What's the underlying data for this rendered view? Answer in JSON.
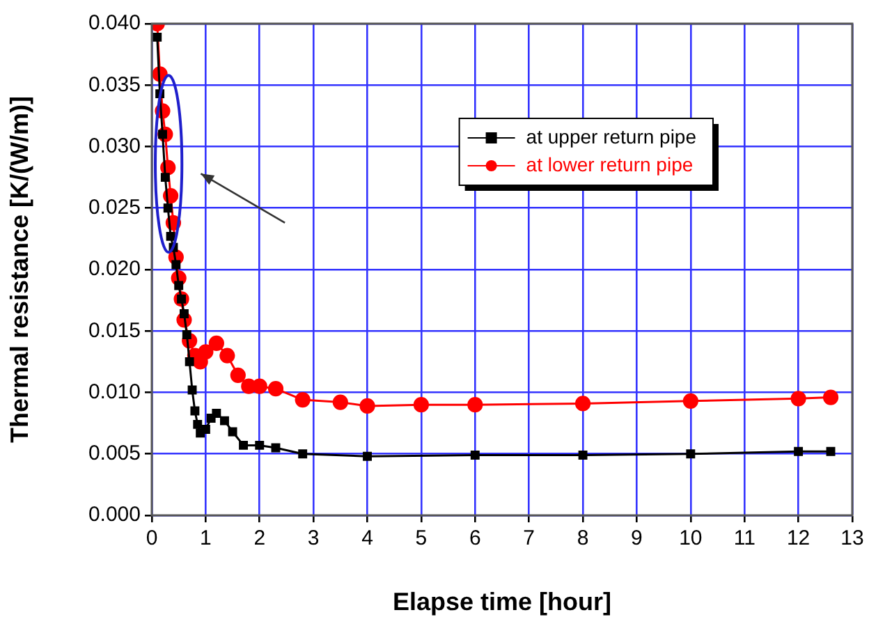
{
  "chart_data": {
    "type": "line",
    "xlabel": "Elapse time [hour]",
    "ylabel": "Thermal resistance [K/(W/m)]",
    "xlim": [
      0,
      13
    ],
    "xticks": [
      0,
      1,
      2,
      3,
      4,
      5,
      6,
      7,
      8,
      9,
      10,
      11,
      12,
      13
    ],
    "ylim": [
      0,
      0.04
    ],
    "yticks": [
      {
        "value": 0,
        "label": "0.000"
      },
      {
        "value": 0.005,
        "label": "0.005"
      },
      {
        "value": 0.01,
        "label": "0.010"
      },
      {
        "value": 0.015,
        "label": "0.015"
      },
      {
        "value": 0.02,
        "label": "0.020"
      },
      {
        "value": 0.025,
        "label": "0.025"
      },
      {
        "value": 0.03,
        "label": "0.030"
      },
      {
        "value": 0.035,
        "label": "0.035"
      },
      {
        "value": 0.04,
        "label": "0.040"
      }
    ],
    "grid": true,
    "legend": "top right",
    "series": [
      {
        "name": "at upper return pipe",
        "color": "#000000",
        "marker": "square",
        "x": [
          0.1,
          0.15,
          0.2,
          0.25,
          0.3,
          0.35,
          0.4,
          0.45,
          0.5,
          0.55,
          0.6,
          0.65,
          0.7,
          0.75,
          0.8,
          0.85,
          0.9,
          1.0,
          1.1,
          1.2,
          1.35,
          1.5,
          1.7,
          2.0,
          2.3,
          2.8,
          4,
          6,
          8,
          10,
          12,
          12.6
        ],
        "values": [
          0.0389,
          0.0343,
          0.031,
          0.0275,
          0.025,
          0.0227,
          0.0218,
          0.0204,
          0.0187,
          0.0176,
          0.0164,
          0.0147,
          0.0125,
          0.0102,
          0.0085,
          0.0074,
          0.0067,
          0.007,
          0.0079,
          0.0083,
          0.0077,
          0.0068,
          0.0057,
          0.0057,
          0.0055,
          0.005,
          0.0048,
          0.0049,
          0.0049,
          0.005,
          0.0052,
          0.0052
        ]
      },
      {
        "name": "at lower return pipe",
        "color": "#ff0000",
        "marker": "circle",
        "x": [
          0.1,
          0.15,
          0.2,
          0.25,
          0.3,
          0.35,
          0.4,
          0.45,
          0.5,
          0.55,
          0.6,
          0.7,
          0.8,
          0.9,
          1.0,
          1.2,
          1.4,
          1.6,
          1.8,
          2.0,
          2.3,
          2.8,
          3.5,
          4,
          5,
          6,
          8,
          10,
          12,
          12.6
        ],
        "values": [
          0.04,
          0.0359,
          0.0329,
          0.031,
          0.0283,
          0.026,
          0.0238,
          0.021,
          0.0193,
          0.0176,
          0.0159,
          0.0142,
          0.013,
          0.0125,
          0.0133,
          0.014,
          0.013,
          0.0114,
          0.0105,
          0.0105,
          0.0103,
          0.0094,
          0.0092,
          0.0089,
          0.009,
          0.009,
          0.0091,
          0.0093,
          0.0095,
          0.0096
        ]
      }
    ]
  }
}
